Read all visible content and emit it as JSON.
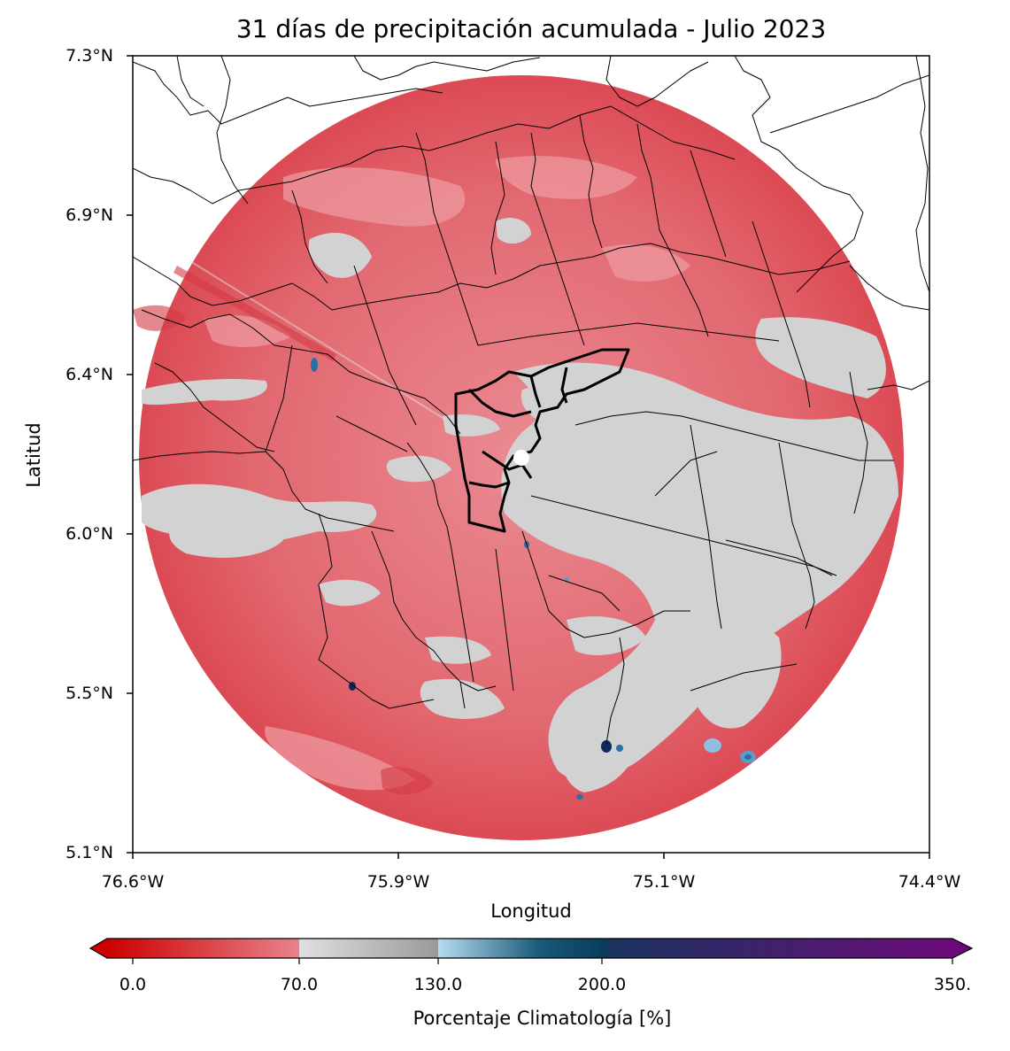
{
  "title": "31 días de precipitación acumulada - Julio 2023",
  "xlabel": "Longitud",
  "ylabel": "Latitud",
  "y_ticks": [
    "7.3°N",
    "6.9°N",
    "6.4°N",
    "6.0°N",
    "5.5°N",
    "5.1°N"
  ],
  "x_ticks": [
    "76.6°W",
    "75.9°W",
    "75.1°W",
    "74.4°W"
  ],
  "colorbar": {
    "label": "Porcentaje Climatología [%]",
    "ticks": [
      "0.0",
      "70.0",
      "130.0",
      "200.0",
      "350."
    ],
    "tick_values": [
      0,
      70,
      130,
      200,
      350
    ],
    "range": [
      0,
      350
    ],
    "extend": "both",
    "segments": [
      {
        "from": 0,
        "to": 70,
        "colors": [
          "#cc0000",
          "#e8838c"
        ]
      },
      {
        "from": 70,
        "to": 130,
        "colors": [
          "#e0e0e0",
          "#9a9a9a"
        ]
      },
      {
        "from": 130,
        "to": 200,
        "colors": [
          "#b7dcf0",
          "#083b5a"
        ]
      },
      {
        "from": 200,
        "to": 350,
        "colors": [
          "#1a3560",
          "#6a0a78"
        ]
      }
    ]
  },
  "map": {
    "lon_range": [
      -76.6,
      -74.4
    ],
    "lat_range": [
      5.1,
      7.3
    ],
    "radar_center": {
      "lon": -75.53,
      "lat": 6.19
    },
    "colors": {
      "low": "#e0606a",
      "mid": "#d4d4d4",
      "high": "#2a6fa8",
      "deep": "#0d2a5a",
      "boundary": "#000000"
    }
  }
}
